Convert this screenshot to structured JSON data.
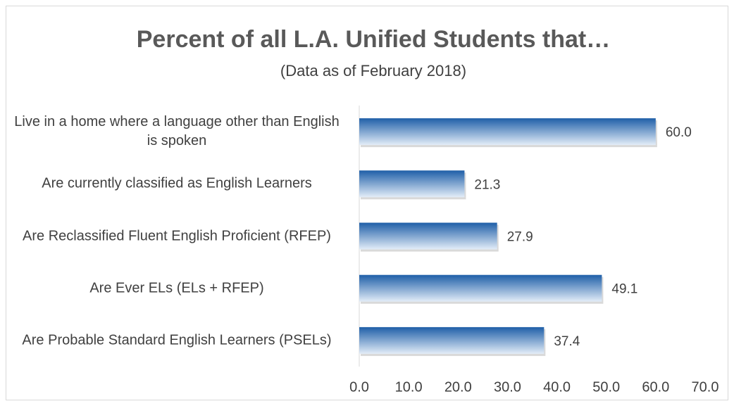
{
  "chart_data": {
    "type": "bar",
    "orientation": "horizontal",
    "title": "Percent of all L.A. Unified Students that…",
    "subtitle": "(Data as of February 2018)",
    "categories": [
      "Live in a home where a language other than English is spoken",
      "Are currently classified as English Learners",
      "Are Reclassified Fluent English Proficient (RFEP)",
      "Are Ever ELs (ELs + RFEP)",
      "Are Probable Standard English Learners (PSELs)"
    ],
    "values": [
      60.0,
      21.3,
      27.9,
      49.1,
      37.4
    ],
    "value_labels": [
      "60.0",
      "21.3",
      "27.9",
      "49.1",
      "37.4"
    ],
    "color": "#1f5fa8",
    "xlim": [
      0,
      70
    ],
    "xticks": [
      {
        "value": 0,
        "label": "0.0"
      },
      {
        "value": 10,
        "label": "10.0"
      },
      {
        "value": 20,
        "label": "20.0"
      },
      {
        "value": 30,
        "label": "30.0"
      },
      {
        "value": 40,
        "label": "40.0"
      },
      {
        "value": 50,
        "label": "50.0"
      },
      {
        "value": 60,
        "label": "60.0"
      },
      {
        "value": 70,
        "label": "70.0"
      }
    ],
    "grid": false
  }
}
